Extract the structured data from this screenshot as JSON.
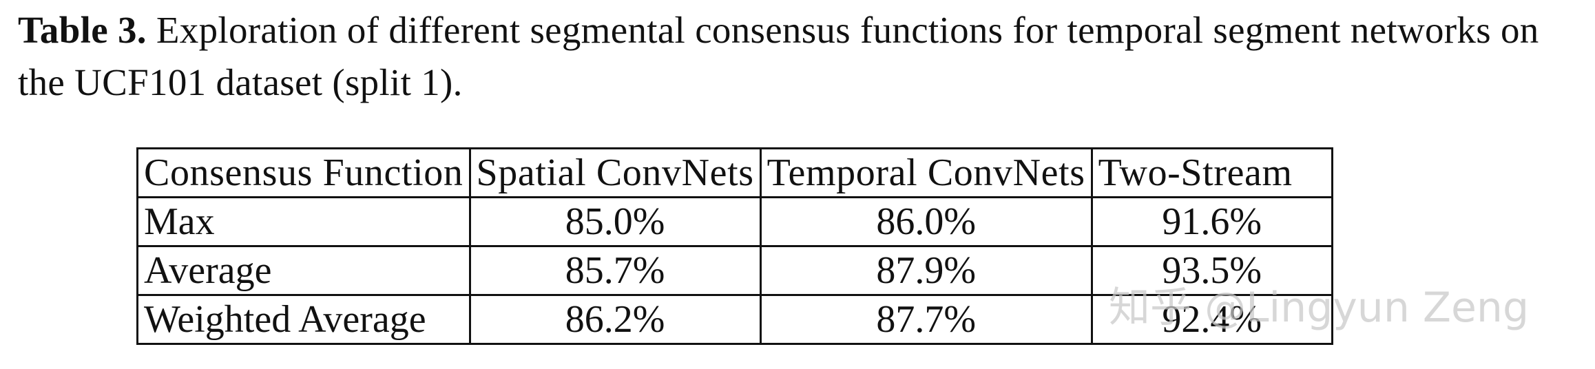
{
  "caption": {
    "label": "Table 3.",
    "text": "Exploration of different segmental consensus functions for temporal segment networks on the UCF101 dataset (split 1)."
  },
  "table": {
    "headers": [
      "Consensus Function",
      "Spatial ConvNets",
      "Temporal ConvNets",
      "Two-Stream"
    ],
    "rows": [
      {
        "name": "Max",
        "spatial": "85.0%",
        "temporal": "86.0%",
        "two_stream": "91.6%"
      },
      {
        "name": "Average",
        "spatial": "85.7%",
        "temporal": "87.9%",
        "two_stream": "93.5%"
      },
      {
        "name": "Weighted Average",
        "spatial": "86.2%",
        "temporal": "87.7%",
        "two_stream": "92.4%"
      }
    ],
    "best_value_highlight": "bold"
  },
  "watermark": {
    "text": "知乎 @Lingyun Zeng"
  }
}
